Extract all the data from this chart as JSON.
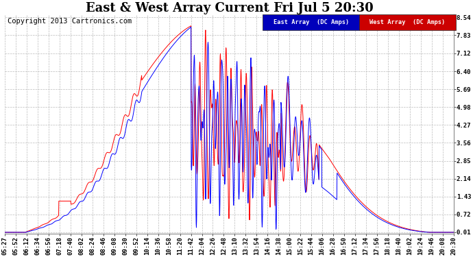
{
  "title": "East & West Array Current Fri Jul 5 20:30",
  "copyright": "Copyright 2013 Cartronics.com",
  "legend_east": "East Array  (DC Amps)",
  "legend_west": "West Array  (DC Amps)",
  "east_color": "#0000ff",
  "west_color": "#ff0000",
  "yticks": [
    0.01,
    0.72,
    1.43,
    2.14,
    2.85,
    3.56,
    4.27,
    4.98,
    5.69,
    6.4,
    7.12,
    7.83,
    8.54
  ],
  "ymin": 0.01,
  "ymax": 8.54,
  "background_color": "#ffffff",
  "grid_color": "#bbbbbb",
  "title_fontsize": 13,
  "copyright_fontsize": 7.5,
  "tick_fontsize": 6.5,
  "time_labels": [
    "05:27",
    "05:52",
    "06:12",
    "06:34",
    "06:56",
    "07:18",
    "07:40",
    "08:02",
    "08:24",
    "08:46",
    "09:08",
    "09:30",
    "09:52",
    "10:14",
    "10:36",
    "10:58",
    "11:20",
    "11:42",
    "12:04",
    "12:26",
    "12:48",
    "13:10",
    "13:32",
    "13:54",
    "14:16",
    "14:38",
    "15:00",
    "15:22",
    "15:44",
    "16:06",
    "16:28",
    "16:50",
    "17:12",
    "17:34",
    "17:56",
    "18:18",
    "18:40",
    "19:02",
    "19:24",
    "19:46",
    "20:08",
    "20:30"
  ]
}
